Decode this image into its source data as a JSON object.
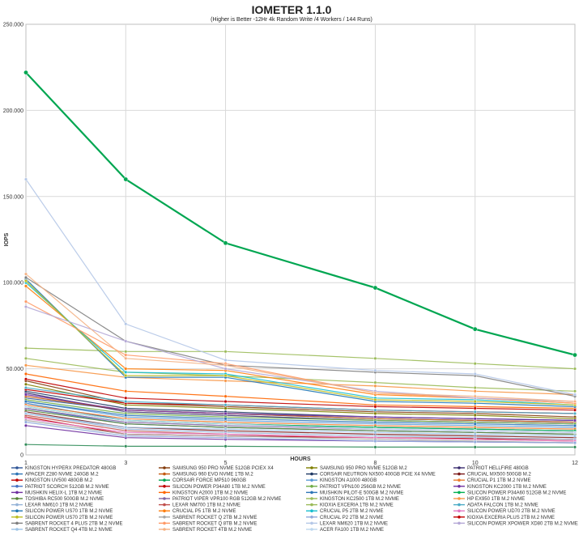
{
  "chart_data": {
    "type": "line",
    "title": "IOMETER 1.1.0",
    "subtitle": "(Higher is Better -12Hr 4k Random Write /4 Workers / 144 Runs)",
    "xlabel": "HOURS",
    "ylabel": "IOPS",
    "x": [
      1,
      3,
      5,
      8,
      10,
      12
    ],
    "xticks": [
      "1",
      "3",
      "5",
      "8",
      "10",
      "12"
    ],
    "ylim": [
      0,
      250000
    ],
    "yticks": [
      "0",
      "50.000",
      "100.000",
      "150.000",
      "200.000",
      "250.000"
    ],
    "grid": true,
    "legend": "bottom",
    "series": [
      {
        "name": "KINGSTON HYPERX PREDATOR 480GB",
        "color": "#2f5597",
        "values": [
          33000,
          26000,
          24000,
          21000,
          20000,
          19000
        ]
      },
      {
        "name": "SAMSUNG 950 PRO NVME 512GB PCIEX X4",
        "color": "#843c0c",
        "values": [
          43000,
          30000,
          28000,
          25000,
          24000,
          22000
        ]
      },
      {
        "name": "SAMSUNG 950 PRO NVME 512GB M.2",
        "color": "#7f7f00",
        "values": [
          41000,
          29000,
          27000,
          24000,
          23000,
          21000
        ]
      },
      {
        "name": "PATRIOT HELLFIRE 480GB",
        "color": "#3a2c6e",
        "values": [
          36000,
          25000,
          23000,
          20000,
          19000,
          18000
        ]
      },
      {
        "name": "APACER Z280 NVME 240GB M.2",
        "color": "#2e75b6",
        "values": [
          30000,
          20000,
          18000,
          16000,
          15000,
          14000
        ]
      },
      {
        "name": "SAMSUNG 960 EVO NVME 1TB M.2",
        "color": "#c55a11",
        "values": [
          34000,
          26000,
          24000,
          21000,
          20000,
          19000
        ]
      },
      {
        "name": "CORSAIR NEUTRON NX500 400GB PCIE X4 NVME",
        "color": "#1f3864",
        "values": [
          37000,
          27000,
          25000,
          22000,
          21000,
          20000
        ]
      },
      {
        "name": "CRUCIAL MX500 500GB M.2",
        "color": "#7b1a1a",
        "values": [
          25000,
          16000,
          14000,
          12000,
          11000,
          10000
        ]
      },
      {
        "name": "KINGSTON UV500 480GB M.2",
        "color": "#c00000",
        "values": [
          22000,
          12000,
          11000,
          10000,
          9500,
          9000
        ]
      },
      {
        "name": "CORSAIR FORCE MP510 960GB",
        "color": "#00a651",
        "values": [
          222000,
          160000,
          123000,
          97000,
          73000,
          58000
        ]
      },
      {
        "name": "KINGSTON A1000 480GB",
        "color": "#5b9bd5",
        "values": [
          31000,
          22000,
          20000,
          18000,
          17000,
          16000
        ]
      },
      {
        "name": "CRUCIAL P1 1TB M.2 NVME",
        "color": "#ed7d31",
        "values": [
          29000,
          21000,
          19000,
          17000,
          16000,
          15000
        ]
      },
      {
        "name": "PATRIOT SCORCH 512GB M.2 NVME",
        "color": "#4472c4",
        "values": [
          27000,
          18000,
          16000,
          14000,
          13000,
          12000
        ]
      },
      {
        "name": "SILICON POWER P34A80 1TB M.2 NVME",
        "color": "#c00000",
        "values": [
          38000,
          30000,
          29000,
          26000,
          25000,
          24000
        ]
      },
      {
        "name": "PATRIOT VPN100 256GB M.2 NVME",
        "color": "#70ad47",
        "values": [
          32000,
          24000,
          22000,
          20000,
          19000,
          18000
        ]
      },
      {
        "name": "KINGSTON KC2000 1TB M.2 NVME",
        "color": "#7030a0",
        "values": [
          35000,
          26000,
          24000,
          22000,
          21000,
          20000
        ]
      },
      {
        "name": "MUSHKIN HELIX-L 1TB M.2 NVME",
        "color": "#7030a0",
        "values": [
          17000,
          10000,
          9000,
          8000,
          7500,
          7000
        ]
      },
      {
        "name": "KINGSTON A2000 1TB M.2 NVME",
        "color": "#ff6600",
        "values": [
          47000,
          37000,
          34000,
          29000,
          28000,
          27000
        ]
      },
      {
        "name": "MUSHKIN PILOT-E 500GB M.2 NVME",
        "color": "#2e75b6",
        "values": [
          31000,
          23000,
          21000,
          19000,
          18000,
          17000
        ]
      },
      {
        "name": "SILICON POWER P34A60 512GB M.2 NVME",
        "color": "#00b050",
        "values": [
          28000,
          20000,
          18000,
          16000,
          15000,
          14000
        ]
      },
      {
        "name": "TOSHIBA RC500 500GB M.2 NVME",
        "color": "#548235",
        "values": [
          26000,
          18000,
          16000,
          14000,
          13000,
          12000
        ]
      },
      {
        "name": "PATRIOT VIPER VPR100 RGB 512GB M.2 NVME",
        "color": "#8064a2",
        "values": [
          27000,
          19000,
          17000,
          15000,
          14000,
          13000
        ]
      },
      {
        "name": "KINGSTON KC2500 1TB M.2 NVME",
        "color": "#9bbb59",
        "values": [
          56000,
          48000,
          46000,
          42000,
          39000,
          37000
        ]
      },
      {
        "name": "HP EX950 1TB M.2 NVME",
        "color": "#f79646",
        "values": [
          52000,
          45000,
          43000,
          40000,
          37000,
          35000
        ]
      },
      {
        "name": "LEXAR NM610 1TB M.2 NVME",
        "color": "#95b3d7",
        "values": [
          24000,
          15000,
          13000,
          11000,
          10000,
          9000
        ]
      },
      {
        "name": "LEXAR NM700 1TB M.2 NVME",
        "color": "#c0504d",
        "values": [
          23000,
          14000,
          12000,
          10000,
          9000,
          8000
        ]
      },
      {
        "name": "KIOXIA EXCERIA 1TB M.2 NVME",
        "color": "#9bbb59",
        "values": [
          62000,
          60000,
          60000,
          56000,
          53000,
          50000
        ]
      },
      {
        "name": "ADATA FALCON 1TB M.2 NVME",
        "color": "#4bacc6",
        "values": [
          39000,
          31000,
          29000,
          26000,
          25000,
          24000
        ]
      },
      {
        "name": "SILICON POWER US70 1TB M.2 NVME",
        "color": "#1f77b4",
        "values": [
          102000,
          45000,
          45000,
          31000,
          30000,
          28000
        ]
      },
      {
        "name": "CRUCIAL P5 1TB M.2 NVME",
        "color": "#ff7f0e",
        "values": [
          98000,
          50000,
          49000,
          35000,
          33000,
          30000
        ]
      },
      {
        "name": "CRUCIAL P5 2TB M.2 NVME",
        "color": "#17becf",
        "values": [
          100000,
          48000,
          47000,
          33000,
          32000,
          29000
        ]
      },
      {
        "name": "SILICON POWER UD70 2TB M.2 NVME",
        "color": "#e377c2",
        "values": [
          21000,
          13000,
          12000,
          10000,
          9000,
          8000
        ]
      },
      {
        "name": "SILICON POWER US70 2TB M.2 NVME",
        "color": "#bcbd22",
        "values": [
          101000,
          46000,
          46000,
          32000,
          31000,
          29000
        ]
      },
      {
        "name": "SABRENT ROCKET Q 2TB M.2 NVME",
        "color": "#a6a6a6",
        "values": [
          20000,
          12000,
          11000,
          9000,
          8000,
          7000
        ]
      },
      {
        "name": "CRUCIAL P2 2TB M.2 NVME",
        "color": "#8faadc",
        "values": [
          19000,
          11000,
          10000,
          8000,
          7500,
          7000
        ]
      },
      {
        "name": "KIOXIA EXCERIA PLUS 2TB M.2 NVME",
        "color": "#c00000",
        "values": [
          44000,
          33000,
          31000,
          28000,
          27000,
          26000
        ]
      },
      {
        "name": "SABRENT ROCKET 4 PLUS 2TB M.2 NVME",
        "color": "#7f7f7f",
        "values": [
          103000,
          66000,
          52000,
          48000,
          46000,
          34000
        ]
      },
      {
        "name": "SABRENT ROCKET Q 8TB M.2 NVME",
        "color": "#ff9966",
        "values": [
          89000,
          58000,
          53000,
          36000,
          33000,
          30000
        ]
      },
      {
        "name": "LEXAR NM620 1TB M.2 NVME",
        "color": "#b4c7e7",
        "values": [
          160000,
          76000,
          55000,
          49000,
          47000,
          35000
        ]
      },
      {
        "name": "SILICON POWER XPOWER XD80 2TB M.2 NVME",
        "color": "#b4a7d6",
        "values": [
          86000,
          66000,
          50000,
          37000,
          33000,
          31000
        ]
      },
      {
        "name": "SABRENT ROCKET Q4 4TB M.2 NVME",
        "color": "#9dc3e6",
        "values": [
          24000,
          16000,
          15000,
          13000,
          12000,
          11000
        ]
      },
      {
        "name": "SABRENT ROCKET 4TB M.2 NVME",
        "color": "#f4b183",
        "values": [
          105000,
          56000,
          52000,
          36000,
          34000,
          31000
        ]
      },
      {
        "name": "ACER FA100 1TB M.2 NVME",
        "color": "#bdd7ee",
        "values": [
          28000,
          20000,
          18000,
          15000,
          14000,
          13000
        ]
      },
      {
        "name": "",
        "color": "#2e8b57",
        "values": [
          6000,
          5000,
          5000,
          4500,
          4500,
          4500
        ]
      }
    ]
  }
}
